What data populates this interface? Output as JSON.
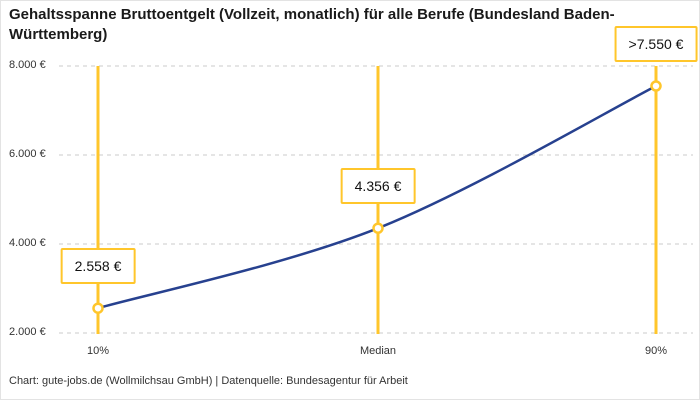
{
  "title": "Gehaltsspanne Bruttoentgelt (Vollzeit, monatlich) für alle Berufe (Bundesland Baden-Württemberg)",
  "footer": "Chart: gute-jobs.de (Wollmilchsau GmbH) | Datenquelle: Bundesagentur für Arbeit",
  "colors": {
    "accent_yellow": "#ffc62b",
    "line_blue": "#27418f",
    "grid_gray": "#cbcbcb"
  },
  "chart_data": {
    "type": "line",
    "title": "Gehaltsspanne Bruttoentgelt (Vollzeit, monatlich) für alle Berufe (Bundesland Baden-Württemberg)",
    "categories": [
      "10%",
      "Median",
      "90%"
    ],
    "values": [
      2558,
      4356,
      7550
    ],
    "point_labels": [
      "2.558 €",
      "4.356 €",
      ">7.550 €"
    ],
    "y_ticks": [
      2000,
      4000,
      6000,
      8000
    ],
    "y_tick_labels": [
      "2.000 €",
      "4.000 €",
      "6.000 €",
      "8.000 €"
    ],
    "ylim": [
      2000,
      8000
    ],
    "grid": "horizontal-dashed",
    "legend": "none"
  }
}
